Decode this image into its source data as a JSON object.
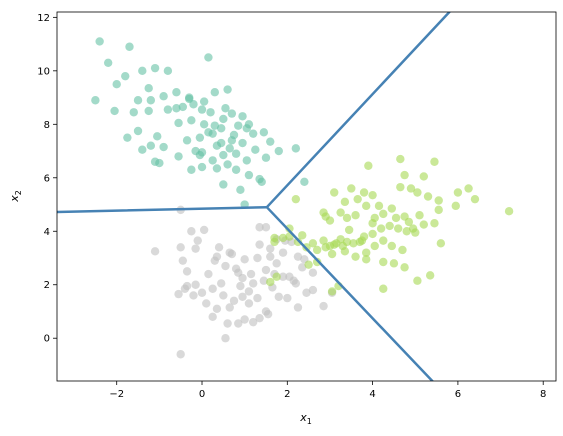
{
  "chart_data": {
    "type": "scatter",
    "xlabel": "x",
    "xlabel_sub": "1",
    "ylabel": "x",
    "ylabel_sub": "2",
    "xlim": [
      -3.4,
      8.3
    ],
    "ylim": [
      -1.6,
      12.2
    ],
    "xticks": [
      -2,
      0,
      2,
      4,
      6,
      8
    ],
    "yticks": [
      0,
      2,
      4,
      6,
      8,
      10,
      12
    ],
    "grid": false,
    "legend": "none",
    "boundary_color": "#4682b4",
    "boundaries": [
      [
        [
          -3.4,
          4.72
        ],
        [
          1.52,
          4.9
        ]
      ],
      [
        [
          1.52,
          4.9
        ],
        [
          5.8,
          12.2
        ]
      ],
      [
        [
          1.52,
          4.9
        ],
        [
          5.4,
          -1.6
        ]
      ]
    ],
    "series": [
      {
        "color": "#66c2a5",
        "points": [
          [
            -2.4,
            11.1
          ],
          [
            -2.2,
            10.3
          ],
          [
            -1.7,
            10.9
          ],
          [
            -0.8,
            10.0
          ],
          [
            0.15,
            10.5
          ],
          [
            -2.0,
            9.5
          ],
          [
            -1.8,
            9.8
          ],
          [
            -1.4,
            10.0
          ],
          [
            -1.1,
            10.1
          ],
          [
            -1.25,
            9.35
          ],
          [
            -1.2,
            8.9
          ],
          [
            -0.9,
            9.05
          ],
          [
            -0.6,
            9.2
          ],
          [
            -0.3,
            8.95
          ],
          [
            0.3,
            9.2
          ],
          [
            -0.2,
            8.75
          ],
          [
            0.05,
            8.85
          ],
          [
            0.6,
            9.3
          ],
          [
            0.55,
            8.6
          ],
          [
            -2.5,
            8.9
          ],
          [
            -2.05,
            8.5
          ],
          [
            -1.6,
            8.45
          ],
          [
            -1.25,
            8.5
          ],
          [
            -0.8,
            8.55
          ],
          [
            -0.6,
            8.6
          ],
          [
            -0.45,
            8.65
          ],
          [
            0.0,
            8.55
          ],
          [
            0.2,
            8.45
          ],
          [
            0.5,
            8.2
          ],
          [
            0.7,
            8.4
          ],
          [
            0.95,
            8.3
          ],
          [
            1.1,
            8.0
          ],
          [
            0.3,
            7.95
          ],
          [
            -0.25,
            8.15
          ],
          [
            -0.55,
            8.05
          ],
          [
            0.05,
            8.0
          ],
          [
            0.15,
            7.7
          ],
          [
            0.45,
            7.85
          ],
          [
            0.75,
            7.6
          ],
          [
            1.2,
            7.65
          ],
          [
            1.45,
            7.7
          ],
          [
            0.85,
            7.95
          ],
          [
            1.05,
            7.85
          ],
          [
            -1.5,
            7.75
          ],
          [
            -1.75,
            7.5
          ],
          [
            -1.05,
            7.55
          ],
          [
            -0.35,
            7.4
          ],
          [
            -0.05,
            7.5
          ],
          [
            0.25,
            7.65
          ],
          [
            -1.4,
            7.05
          ],
          [
            -0.9,
            7.15
          ],
          [
            -0.55,
            6.8
          ],
          [
            -0.05,
            6.85
          ],
          [
            0.35,
            7.2
          ],
          [
            0.65,
            7.1
          ],
          [
            0.95,
            7.3
          ],
          [
            1.25,
            7.05
          ],
          [
            0.8,
            6.9
          ],
          [
            0.5,
            6.85
          ],
          [
            1.05,
            6.65
          ],
          [
            1.5,
            6.75
          ],
          [
            0.0,
            6.4
          ],
          [
            -0.25,
            6.3
          ],
          [
            -1.0,
            6.55
          ],
          [
            -1.1,
            6.6
          ],
          [
            0.35,
            6.35
          ],
          [
            0.8,
            6.3
          ],
          [
            1.1,
            6.1
          ],
          [
            1.35,
            5.95
          ],
          [
            1.4,
            5.85
          ],
          [
            0.5,
            5.75
          ],
          [
            0.9,
            5.55
          ],
          [
            2.2,
            7.1
          ],
          [
            2.4,
            5.85
          ],
          [
            1.0,
            5.0
          ],
          [
            0.0,
            6.95
          ],
          [
            0.25,
            6.65
          ],
          [
            0.6,
            6.5
          ],
          [
            -0.15,
            7.0
          ],
          [
            1.6,
            7.35
          ],
          [
            1.8,
            7.0
          ],
          [
            0.7,
            7.4
          ],
          [
            -1.2,
            7.2
          ],
          [
            -1.5,
            8.9
          ],
          [
            -0.3,
            9.0
          ],
          [
            0.45,
            7.3
          ]
        ]
      },
      {
        "color": "#bfbfbf",
        "points": [
          [
            -0.5,
            4.8
          ],
          [
            -1.1,
            3.25
          ],
          [
            -0.5,
            3.4
          ],
          [
            -0.1,
            3.65
          ],
          [
            0.05,
            4.05
          ],
          [
            -0.15,
            3.35
          ],
          [
            -0.45,
            2.9
          ],
          [
            -0.35,
            2.5
          ],
          [
            0.3,
            2.9
          ],
          [
            0.65,
            3.2
          ],
          [
            0.55,
            2.7
          ],
          [
            0.85,
            2.45
          ],
          [
            0.95,
            2.25
          ],
          [
            0.45,
            2.05
          ],
          [
            0.15,
            2.4
          ],
          [
            -0.15,
            2.0
          ],
          [
            -0.35,
            1.95
          ],
          [
            -0.55,
            1.65
          ],
          [
            -0.4,
            1.85
          ],
          [
            0.0,
            1.7
          ],
          [
            0.25,
            1.85
          ],
          [
            0.5,
            1.6
          ],
          [
            0.75,
            1.4
          ],
          [
            0.95,
            1.55
          ],
          [
            1.1,
            1.3
          ],
          [
            1.3,
            1.5
          ],
          [
            1.0,
            2.95
          ],
          [
            1.3,
            3.0
          ],
          [
            1.5,
            2.55
          ],
          [
            1.7,
            2.4
          ],
          [
            1.9,
            2.3
          ],
          [
            2.05,
            2.3
          ],
          [
            2.15,
            2.15
          ],
          [
            2.2,
            2.05
          ],
          [
            1.65,
            1.9
          ],
          [
            1.2,
            2.05
          ],
          [
            0.65,
            1.15
          ],
          [
            0.35,
            1.1
          ],
          [
            0.25,
            0.8
          ],
          [
            0.6,
            0.55
          ],
          [
            0.85,
            0.55
          ],
          [
            1.0,
            0.7
          ],
          [
            1.2,
            0.6
          ],
          [
            1.35,
            0.75
          ],
          [
            1.5,
            1.0
          ],
          [
            1.55,
            0.9
          ],
          [
            0.9,
            1.95
          ],
          [
            0.35,
            3.05
          ],
          [
            0.7,
            3.15
          ],
          [
            1.35,
            3.5
          ],
          [
            1.6,
            3.35
          ],
          [
            1.75,
            3.7
          ],
          [
            1.35,
            4.15
          ],
          [
            1.5,
            4.15
          ],
          [
            1.6,
            3.05
          ],
          [
            1.9,
            3.2
          ],
          [
            2.25,
            3.05
          ],
          [
            2.35,
            2.65
          ],
          [
            2.6,
            2.45
          ],
          [
            2.45,
            1.7
          ],
          [
            2.25,
            1.15
          ],
          [
            2.6,
            1.8
          ],
          [
            2.85,
            1.2
          ],
          [
            3.05,
            1.7
          ],
          [
            -0.25,
            4.0
          ],
          [
            -0.5,
            -0.6
          ],
          [
            0.55,
            0.0
          ],
          [
            2.0,
            1.5
          ],
          [
            1.1,
            1.75
          ],
          [
            0.1,
            1.3
          ],
          [
            -0.2,
            1.6
          ],
          [
            1.8,
            1.55
          ],
          [
            2.1,
            3.6
          ],
          [
            0.8,
            2.6
          ],
          [
            1.15,
            2.4
          ],
          [
            1.45,
            2.15
          ],
          [
            1.95,
            3.65
          ],
          [
            0.4,
            3.4
          ],
          [
            1.75,
            2.8
          ],
          [
            2.4,
            2.95
          ]
        ]
      },
      {
        "color": "#a6d854",
        "points": [
          [
            3.9,
            6.45
          ],
          [
            4.65,
            6.7
          ],
          [
            5.45,
            6.6
          ],
          [
            4.75,
            6.1
          ],
          [
            5.2,
            6.05
          ],
          [
            6.0,
            5.45
          ],
          [
            6.25,
            5.6
          ],
          [
            6.4,
            5.2
          ],
          [
            7.2,
            4.75
          ],
          [
            4.65,
            5.65
          ],
          [
            4.9,
            5.6
          ],
          [
            5.05,
            5.45
          ],
          [
            5.3,
            5.3
          ],
          [
            5.55,
            5.15
          ],
          [
            5.95,
            4.95
          ],
          [
            4.0,
            5.35
          ],
          [
            3.8,
            5.45
          ],
          [
            3.65,
            5.2
          ],
          [
            3.35,
            5.1
          ],
          [
            3.5,
            5.6
          ],
          [
            3.1,
            5.45
          ],
          [
            2.2,
            5.2
          ],
          [
            2.85,
            4.7
          ],
          [
            3.0,
            4.4
          ],
          [
            3.25,
            4.7
          ],
          [
            3.4,
            4.5
          ],
          [
            3.6,
            4.6
          ],
          [
            3.85,
            4.95
          ],
          [
            4.05,
            4.5
          ],
          [
            4.25,
            4.65
          ],
          [
            4.45,
            4.85
          ],
          [
            4.55,
            4.5
          ],
          [
            4.75,
            4.55
          ],
          [
            4.85,
            4.35
          ],
          [
            4.95,
            4.1
          ],
          [
            5.1,
            4.6
          ],
          [
            5.2,
            4.25
          ],
          [
            5.45,
            4.3
          ],
          [
            5.55,
            4.8
          ],
          [
            4.4,
            4.2
          ],
          [
            4.2,
            4.1
          ],
          [
            4.0,
            4.3
          ],
          [
            3.8,
            3.8
          ],
          [
            3.7,
            3.6
          ],
          [
            3.55,
            3.55
          ],
          [
            3.4,
            3.6
          ],
          [
            3.25,
            3.7
          ],
          [
            3.1,
            3.5
          ],
          [
            3.0,
            3.45
          ],
          [
            2.85,
            3.65
          ],
          [
            2.6,
            3.55
          ],
          [
            2.45,
            3.4
          ],
          [
            2.25,
            3.6
          ],
          [
            2.05,
            3.8
          ],
          [
            1.9,
            3.75
          ],
          [
            2.35,
            3.85
          ],
          [
            1.7,
            3.6
          ],
          [
            2.5,
            2.75
          ],
          [
            2.7,
            2.85
          ],
          [
            3.05,
            3.15
          ],
          [
            3.35,
            3.25
          ],
          [
            3.6,
            3.05
          ],
          [
            3.85,
            3.2
          ],
          [
            4.05,
            3.45
          ],
          [
            4.25,
            3.65
          ],
          [
            4.45,
            3.45
          ],
          [
            4.7,
            3.3
          ],
          [
            4.25,
            2.85
          ],
          [
            4.5,
            2.8
          ],
          [
            4.75,
            2.65
          ],
          [
            3.85,
            2.95
          ],
          [
            5.05,
            2.15
          ],
          [
            5.35,
            2.35
          ],
          [
            4.25,
            1.85
          ],
          [
            3.2,
            1.95
          ],
          [
            3.05,
            1.75
          ],
          [
            1.6,
            2.1
          ],
          [
            1.75,
            2.3
          ],
          [
            2.05,
            4.1
          ],
          [
            2.7,
            3.3
          ],
          [
            3.15,
            3.55
          ],
          [
            3.3,
            3.45
          ],
          [
            4.0,
            3.9
          ],
          [
            4.8,
            4.0
          ],
          [
            5.0,
            3.95
          ],
          [
            5.6,
            3.55
          ],
          [
            3.75,
            3.65
          ],
          [
            2.9,
            4.55
          ],
          [
            1.7,
            3.75
          ],
          [
            4.15,
            4.95
          ],
          [
            4.6,
            4.1
          ],
          [
            3.45,
            4.05
          ],
          [
            2.9,
            3.4
          ]
        ]
      }
    ]
  }
}
